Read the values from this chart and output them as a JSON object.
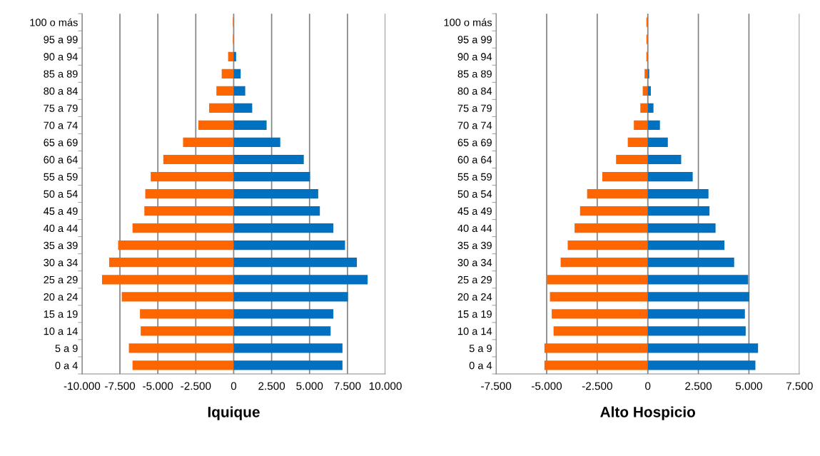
{
  "chart_data": [
    {
      "type": "bar",
      "orientation": "horizontal",
      "stacked": true,
      "title": "Iquique",
      "categories": [
        "100 o más",
        "95 a 99",
        "90 a 94",
        "85 a 89",
        "80 a 84",
        "75 a 79",
        "70 a 74",
        "65 a 69",
        "60 a 64",
        "55 a 59",
        "50 a 54",
        "45 a 49",
        "40 a 44",
        "35 a 39",
        "30 a 34",
        "25 a 29",
        "20 a 24",
        "15 a 19",
        "10 a 14",
        "5 a 9",
        "0 a 4"
      ],
      "series": [
        {
          "color": "#ff6600",
          "values": [
            -50,
            -50,
            -370,
            -790,
            -1140,
            -1620,
            -2330,
            -3340,
            -4640,
            -5470,
            -5830,
            -5890,
            -6670,
            -7620,
            -8210,
            -8680,
            -7380,
            -6180,
            -6130,
            -6910,
            -6670
          ]
        },
        {
          "color": "#0070c0",
          "values": [
            0,
            0,
            160,
            460,
            760,
            1220,
            2170,
            3070,
            4620,
            5030,
            5570,
            5680,
            6570,
            7340,
            8120,
            8830,
            7530,
            6570,
            6390,
            7170,
            7170
          ]
        }
      ],
      "xlim": [
        -10000,
        10000
      ],
      "xticks": [
        {
          "value": -10000,
          "label": "-10.000"
        },
        {
          "value": -7500,
          "label": "-7.500"
        },
        {
          "value": -5000,
          "label": "-5.000"
        },
        {
          "value": -2500,
          "label": "-2.500"
        },
        0,
        {
          "value": 2500,
          "label": "2.500"
        },
        {
          "value": 5000,
          "label": "5.000"
        },
        {
          "value": 7500,
          "label": "7.500"
        },
        {
          "value": 10000,
          "label": "10.000"
        }
      ],
      "grid": "x"
    },
    {
      "type": "bar",
      "orientation": "horizontal",
      "stacked": true,
      "title": "Alto Hospicio",
      "categories": [
        "100 o más",
        "95 a 99",
        "90 a 94",
        "85 a 89",
        "80 a 84",
        "75 a 79",
        "70 a 74",
        "65 a 69",
        "60 a 64",
        "55 a 59",
        "50 a 54",
        "45 a 49",
        "40 a 44",
        "35 a 39",
        "30 a 34",
        "25 a 29",
        "20 a 24",
        "15 a 19",
        "10 a 14",
        "5 a 9",
        "0 a 4"
      ],
      "series": [
        {
          "color": "#ff6600",
          "values": [
            -70,
            -70,
            -70,
            -160,
            -250,
            -370,
            -690,
            -990,
            -1570,
            -2250,
            -3000,
            -3350,
            -3620,
            -3960,
            -4310,
            -4980,
            -4840,
            -4750,
            -4660,
            -5110,
            -5110
          ]
        },
        {
          "color": "#0070c0",
          "values": [
            0,
            0,
            0,
            70,
            150,
            280,
            600,
            990,
            1650,
            2220,
            3000,
            3050,
            3350,
            3790,
            4270,
            4960,
            5020,
            4800,
            4840,
            5450,
            5320
          ]
        }
      ],
      "xlim": [
        -7500,
        7500
      ],
      "xticks": [
        {
          "value": -7500,
          "label": "-7.500"
        },
        {
          "value": -5000,
          "label": "-5.000"
        },
        {
          "value": -2500,
          "label": "-2.500"
        },
        0,
        {
          "value": 2500,
          "label": "2.500"
        },
        {
          "value": 5000,
          "label": "5.000"
        },
        {
          "value": 7500,
          "label": "7.500"
        }
      ],
      "grid": "x"
    }
  ]
}
